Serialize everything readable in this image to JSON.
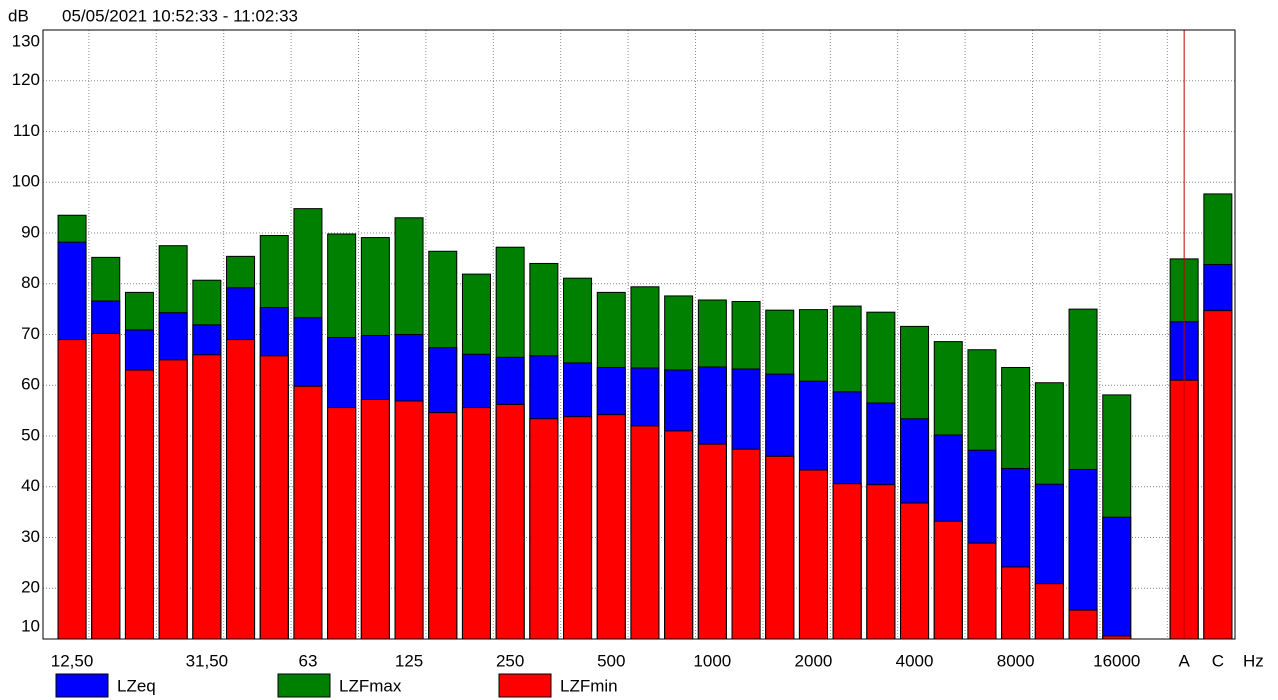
{
  "chart_data": {
    "type": "bar",
    "title": "05/05/2021 10:52:33 - 11:02:33",
    "y_label": "dB",
    "x_label": "Hz",
    "categories": [
      "12,50",
      null,
      null,
      null,
      "31,50",
      null,
      null,
      "63",
      null,
      null,
      "125",
      null,
      null,
      "250",
      null,
      null,
      "500",
      null,
      null,
      "1000",
      null,
      null,
      "2000",
      null,
      null,
      "4000",
      null,
      null,
      "8000",
      null,
      null,
      "16000",
      null,
      "A",
      "C"
    ],
    "series": [
      {
        "name": "LZFmax",
        "color": "#008000",
        "values": [
          93.5,
          85.2,
          78.3,
          87.5,
          80.7,
          85.4,
          89.5,
          94.8,
          89.8,
          89.1,
          93,
          86.4,
          81.9,
          87.2,
          84,
          81.1,
          78.3,
          79.4,
          77.6,
          76.8,
          76.5,
          74.8,
          74.9,
          75.6,
          74.4,
          71.6,
          68.6,
          67,
          63.5,
          60.5,
          75,
          58.1,
          null,
          84.9,
          97.7
        ]
      },
      {
        "name": "LZeq",
        "color": "#0000ff",
        "values": [
          88.2,
          76.6,
          70.9,
          74.3,
          71.9,
          79.2,
          75.3,
          73.3,
          69.4,
          69.8,
          70,
          67.4,
          66.1,
          65.5,
          65.8,
          64.4,
          63.5,
          63.4,
          63,
          63.6,
          63.2,
          62.2,
          60.8,
          58.7,
          56.5,
          53.4,
          50.2,
          47.2,
          43.6,
          40.5,
          43.4,
          34,
          null,
          72.5,
          83.8
        ]
      },
      {
        "name": "LZFmin",
        "color": "#ff0000",
        "values": [
          69,
          70.2,
          63,
          65,
          66,
          69,
          65.8,
          59.8,
          55.6,
          57.2,
          56.9,
          54.6,
          55.6,
          56.2,
          53.4,
          53.8,
          54.2,
          52,
          51,
          48.4,
          47.4,
          46,
          43.3,
          40.6,
          40.4,
          36.8,
          33.2,
          28.9,
          24.2,
          20.9,
          15.7,
          10.6,
          null,
          61,
          74.7
        ]
      }
    ],
    "legend_order": [
      1,
      0,
      2
    ],
    "ylim": [
      10,
      130
    ],
    "yticks": [
      10,
      20,
      30,
      40,
      50,
      60,
      70,
      80,
      90,
      100,
      110,
      120,
      130
    ],
    "grid": true
  }
}
